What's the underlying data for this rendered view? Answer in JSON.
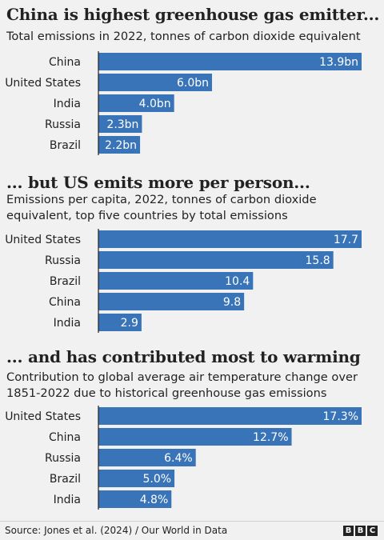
{
  "colors": {
    "bar": "#3a74b8",
    "axis": "#222222",
    "text": "#222222"
  },
  "panels": [
    {
      "title": "China is highest greenhouse gas emitter...",
      "subtitle": "Total emissions in 2022, tonnes of carbon dioxide equivalent"
    },
    {
      "title": "... but US emits more per person...",
      "subtitle": "Emissions per capita, 2022, tonnes of carbon dioxide equivalent, top five countries by total emissions"
    },
    {
      "title": "... and has contributed most to warming",
      "subtitle": "Contribution to global average air temperature change over 1851-2022 due to historical greenhouse gas emissions"
    }
  ],
  "chart_data": [
    {
      "type": "bar",
      "orientation": "horizontal",
      "categories": [
        "China",
        "United States",
        "India",
        "Russia",
        "Brazil"
      ],
      "values": [
        13.9,
        6.0,
        4.0,
        2.3,
        2.2
      ],
      "labels": [
        "13.9bn",
        "6.0bn",
        "4.0bn",
        "2.3bn",
        "2.2bn"
      ],
      "unit": "bn tonnes CO2e",
      "xlim": [
        0,
        13.9
      ]
    },
    {
      "type": "bar",
      "orientation": "horizontal",
      "categories": [
        "United States",
        "Russia",
        "Brazil",
        "China",
        "India"
      ],
      "values": [
        17.7,
        15.8,
        10.4,
        9.8,
        2.9
      ],
      "labels": [
        "17.7",
        "15.8",
        "10.4",
        "9.8",
        "2.9"
      ],
      "unit": "tonnes CO2e per person",
      "xlim": [
        0,
        17.7
      ]
    },
    {
      "type": "bar",
      "orientation": "horizontal",
      "categories": [
        "United States",
        "China",
        "Russia",
        "Brazil",
        "India"
      ],
      "values": [
        17.3,
        12.7,
        6.4,
        5.0,
        4.8
      ],
      "labels": [
        "17.3%",
        "12.7%",
        "6.4%",
        "5.0%",
        "4.8%"
      ],
      "unit": "%",
      "xlim": [
        0,
        17.3
      ]
    }
  ],
  "footer": {
    "source": "Source: Jones et al. (2024) / Our World in Data",
    "logo_letters": [
      "B",
      "B",
      "C"
    ]
  }
}
